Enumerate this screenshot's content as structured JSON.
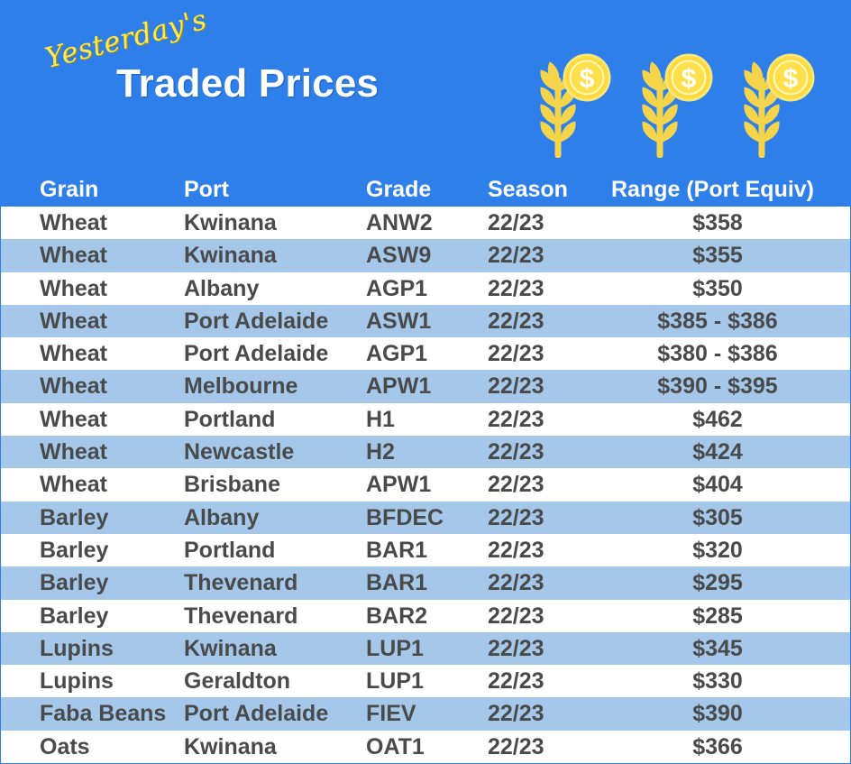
{
  "title": {
    "prefix": "Yesterday's",
    "main": "Traded Prices"
  },
  "icons": [
    "wheat-dollar-icon",
    "wheat-dollar-icon",
    "wheat-dollar-icon"
  ],
  "table": {
    "headers": [
      "Grain",
      "Port",
      "Grade",
      "Season",
      "Range (Port Equiv)"
    ],
    "rows": [
      [
        "Wheat",
        "Kwinana",
        "ANW2",
        "22/23",
        "$358"
      ],
      [
        "Wheat",
        "Kwinana",
        "ASW9",
        "22/23",
        "$355"
      ],
      [
        "Wheat",
        "Albany",
        "AGP1",
        "22/23",
        "$350"
      ],
      [
        "Wheat",
        "Port Adelaide",
        "ASW1",
        "22/23",
        "$385 - $386"
      ],
      [
        "Wheat",
        "Port Adelaide",
        "AGP1",
        "22/23",
        "$380 - $386"
      ],
      [
        "Wheat",
        "Melbourne",
        "APW1",
        "22/23",
        "$390 - $395"
      ],
      [
        "Wheat",
        "Portland",
        "H1",
        "22/23",
        "$462"
      ],
      [
        "Wheat",
        "Newcastle",
        "H2",
        "22/23",
        "$424"
      ],
      [
        "Wheat",
        "Brisbane",
        "APW1",
        "22/23",
        "$404"
      ],
      [
        "Barley",
        "Albany",
        "BFDEC",
        "22/23",
        "$305"
      ],
      [
        "Barley",
        "Portland",
        "BAR1",
        "22/23",
        "$320"
      ],
      [
        "Barley",
        "Thevenard",
        "BAR1",
        "22/23",
        "$295"
      ],
      [
        "Barley",
        "Thevenard",
        "BAR2",
        "22/23",
        "$285"
      ],
      [
        "Lupins",
        "Kwinana",
        "LUP1",
        "22/23",
        "$345"
      ],
      [
        "Lupins",
        "Geraldton",
        "LUP1",
        "22/23",
        "$330"
      ],
      [
        "Faba Beans",
        "Port Adelaide",
        "FIEV",
        "22/23",
        "$390"
      ],
      [
        "Oats",
        "Kwinana",
        "OAT1",
        "22/23",
        "$366"
      ]
    ]
  },
  "colors": {
    "banner_blue": "#2e7fe9",
    "stripe_blue": "#a5c8ea",
    "text_gray": "#4a4a4a",
    "icon_yellow": "#f6d84a",
    "coin_yellow": "#ffd83a",
    "accent_yellow": "#ffe94e"
  }
}
